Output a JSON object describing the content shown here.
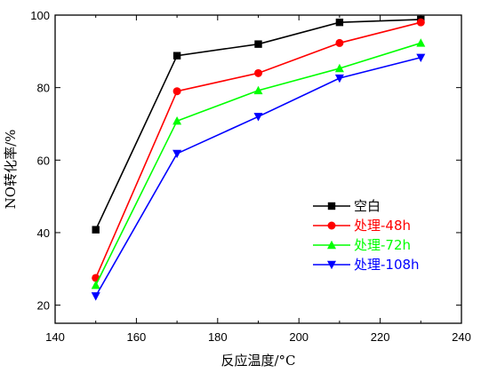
{
  "chart_data": {
    "type": "line",
    "xlabel": "反应温度/°C",
    "ylabel": "NO转化率/%",
    "xlim": [
      140,
      240
    ],
    "ylim": [
      15,
      100
    ],
    "xticks": [
      140,
      160,
      180,
      200,
      220,
      240
    ],
    "yticks": [
      20,
      40,
      60,
      80,
      100
    ],
    "grid": false,
    "legend_position": "lower-right",
    "x": [
      150,
      170,
      190,
      210,
      230
    ],
    "series": [
      {
        "name": "空白",
        "values": [
          40.8,
          88.8,
          92.0,
          98.0,
          98.8
        ],
        "color": "#000000",
        "marker": "square"
      },
      {
        "name": "处理-48h",
        "values": [
          27.5,
          79.0,
          84.0,
          92.3,
          98.0
        ],
        "color": "#ff0000",
        "marker": "circle"
      },
      {
        "name": "处理-72h",
        "values": [
          25.5,
          70.8,
          79.2,
          85.3,
          92.3
        ],
        "color": "#00ff00",
        "marker": "triangle-up"
      },
      {
        "name": "处理-108h",
        "values": [
          22.5,
          61.8,
          72.0,
          82.6,
          88.3
        ],
        "color": "#0000ff",
        "marker": "triangle-down"
      }
    ]
  }
}
